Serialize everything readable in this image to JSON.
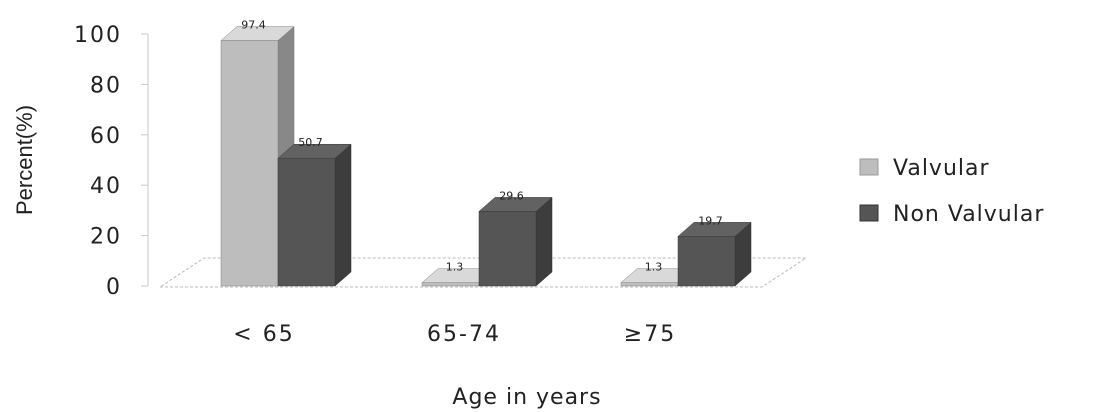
{
  "chart_data": {
    "type": "bar",
    "categories": [
      "< 65",
      "65-74",
      "≥75"
    ],
    "series": [
      {
        "name": "Valvular",
        "values": [
          97.4,
          1.3,
          1.3
        ],
        "color": "#bdbdbd"
      },
      {
        "name": "Non Valvular",
        "values": [
          50.7,
          29.6,
          19.7
        ],
        "color": "#555555"
      }
    ],
    "data_labels": [
      [
        "97.4",
        "1.3",
        "1.3"
      ],
      [
        "50.7",
        "29.6",
        "19.7"
      ]
    ],
    "xlabel": "Age in years",
    "ylabel": "Percent(%)",
    "ylim": [
      0,
      100
    ],
    "yticks": [
      "100",
      "80",
      "60",
      "40",
      "20",
      "0"
    ],
    "grid": false,
    "legend_position": "right",
    "style": "3d"
  }
}
